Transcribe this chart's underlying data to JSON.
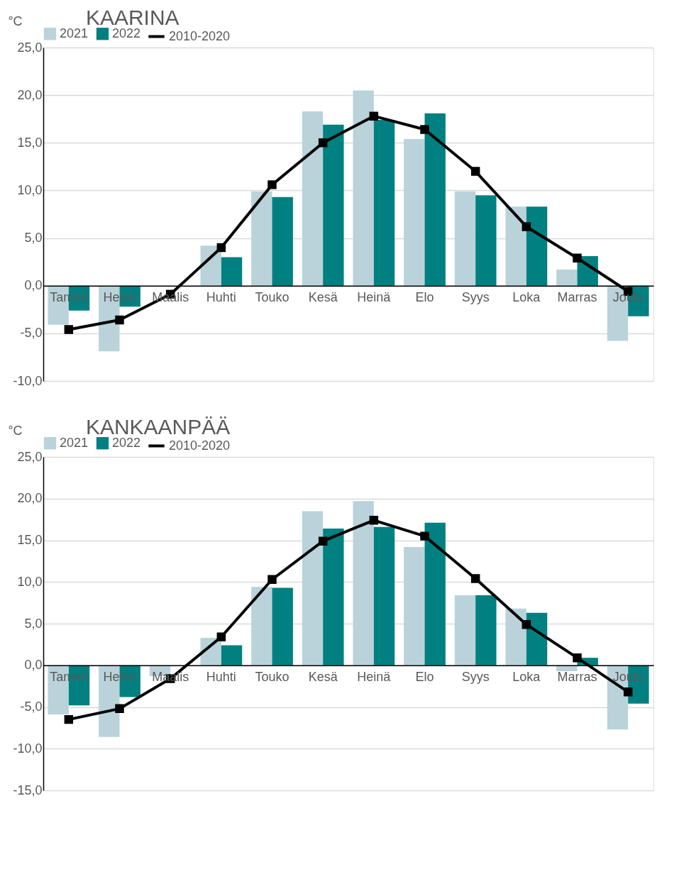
{
  "chart_data": [
    {
      "type": "bar",
      "title": "KAARINA",
      "ylabel": "°C",
      "categories": [
        "Tammi",
        "Helmi",
        "Maalis",
        "Huhti",
        "Touko",
        "Kesä",
        "Heinä",
        "Elo",
        "Syys",
        "Loka",
        "Marras",
        "Joulu"
      ],
      "series": [
        {
          "name": "2021",
          "color": "#bad3da",
          "values": [
            -4.1,
            -6.9,
            null,
            4.2,
            9.9,
            18.3,
            20.5,
            15.4,
            9.9,
            8.3,
            1.7,
            -5.8
          ]
        },
        {
          "name": "2022",
          "color": "#008080",
          "values": [
            -2.6,
            -2.2,
            null,
            3.0,
            9.3,
            16.9,
            17.4,
            18.1,
            9.5,
            8.3,
            3.1,
            -3.2
          ]
        },
        {
          "name": "2010-2020",
          "type": "line",
          "color": "#000000",
          "marker": "square",
          "values": [
            -4.6,
            -3.6,
            -0.9,
            4.0,
            10.6,
            15.0,
            17.8,
            16.4,
            12.0,
            6.2,
            2.9,
            -0.6
          ]
        }
      ],
      "ylim": [
        -10,
        25
      ],
      "yticks": [
        {
          "value": -10,
          "label": "-10,0"
        },
        {
          "value": -5,
          "label": "-5,0"
        },
        {
          "value": 0,
          "label": "0,0"
        },
        {
          "value": 5,
          "label": "5,0"
        },
        {
          "value": 10,
          "label": "10,0"
        },
        {
          "value": 15,
          "label": "15,0"
        },
        {
          "value": 20,
          "label": "20,0"
        },
        {
          "value": 25,
          "label": "25,0"
        }
      ],
      "grid": "y",
      "legend": "top"
    },
    {
      "type": "bar",
      "title": "KANKAANPÄÄ",
      "ylabel": "°C",
      "categories": [
        "Tammi",
        "Helmi",
        "Maalis",
        "Huhti",
        "Touko",
        "Kesä",
        "Heinä",
        "Elo",
        "Syys",
        "Loka",
        "Marras",
        "Joulu"
      ],
      "series": [
        {
          "name": "2021",
          "color": "#bad3da",
          "values": [
            -5.9,
            -8.6,
            -1.3,
            3.3,
            9.4,
            18.5,
            19.7,
            14.2,
            8.4,
            6.8,
            -0.7,
            -7.7
          ]
        },
        {
          "name": "2022",
          "color": "#008080",
          "values": [
            -4.8,
            -3.8,
            null,
            2.4,
            9.3,
            16.4,
            16.6,
            17.1,
            8.4,
            6.3,
            0.9,
            -4.6
          ]
        },
        {
          "name": "2010-2020",
          "type": "line",
          "color": "#000000",
          "marker": "square",
          "values": [
            -6.5,
            -5.2,
            -1.6,
            3.4,
            10.3,
            14.9,
            17.4,
            15.5,
            10.4,
            4.9,
            0.9,
            -3.2
          ]
        }
      ],
      "ylim": [
        -15,
        25
      ],
      "yticks": [
        {
          "value": -15,
          "label": "-15,0"
        },
        {
          "value": -10,
          "label": "-10,0"
        },
        {
          "value": -5,
          "label": "-5,0"
        },
        {
          "value": 0,
          "label": "0,0"
        },
        {
          "value": 5,
          "label": "5,0"
        },
        {
          "value": 10,
          "label": "10,0"
        },
        {
          "value": 15,
          "label": "15,0"
        },
        {
          "value": 20,
          "label": "20,0"
        },
        {
          "value": 25,
          "label": "25,0"
        }
      ],
      "grid": "y",
      "legend": "top"
    }
  ]
}
